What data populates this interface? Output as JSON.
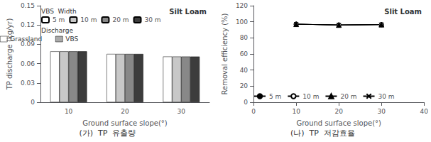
{
  "chart_data": [
    {
      "type": "bar",
      "subtitle": "(가)  TP  유출량",
      "xlabel": "Ground surface slope(°)",
      "ylabel": "TP discharge (kg/yr)",
      "annotations": [
        "Silt Loam"
      ],
      "categories": [
        "10",
        "20",
        "30"
      ],
      "series": [
        {
          "name": "5 m",
          "color": "#ffffff",
          "values": [
            0.079,
            0.075,
            0.071
          ]
        },
        {
          "name": "10 m",
          "color": "#c8c8c8",
          "values": [
            0.079,
            0.075,
            0.071
          ]
        },
        {
          "name": "20 m",
          "color": "#888888",
          "values": [
            0.079,
            0.075,
            0.071
          ]
        },
        {
          "name": "30 m",
          "color": "#3c3c3c",
          "values": [
            0.079,
            0.075,
            0.071
          ]
        }
      ],
      "ylim": [
        0,
        0.15
      ],
      "yticks": [
        0,
        0.03,
        0.06,
        0.09,
        0.12,
        0.15
      ],
      "grid": false,
      "legend": "upper left",
      "legend_title": "VBS  Width",
      "legend2": {
        "title": "Discharge",
        "entries": [
          {
            "name": "Grassland",
            "color": "#ffffff"
          },
          {
            "name": "VBS",
            "color": "#aaaaaa"
          }
        ]
      }
    },
    {
      "type": "line",
      "subtitle": "(나)  TP  저감효율",
      "xlabel": "Ground surface slope(°)",
      "ylabel": "Removal efficiency (%)",
      "annotations": [
        "Slit Loam"
      ],
      "x": [
        10,
        20,
        30
      ],
      "series": [
        {
          "name": "5 m",
          "color": "#000000",
          "marker": "filled_circle",
          "values": [
            97.0,
            96.0,
            96.5
          ]
        },
        {
          "name": "10 m",
          "color": "#000000",
          "marker": "open_circle",
          "values": [
            97.0,
            96.0,
            96.5
          ]
        },
        {
          "name": "20 m",
          "color": "#000000",
          "marker": "filled_triangle",
          "values": [
            97.0,
            96.0,
            96.5
          ]
        },
        {
          "name": "30 m",
          "color": "#000000",
          "marker": "x",
          "values": [
            97.0,
            96.0,
            96.5
          ]
        }
      ],
      "xlim": [
        0,
        40
      ],
      "xticks": [
        0,
        10,
        20,
        30,
        40
      ],
      "ylim": [
        0,
        120
      ],
      "yticks": [
        0,
        20,
        40,
        60,
        80,
        100,
        120
      ],
      "grid": false,
      "legend": "lower left"
    }
  ]
}
